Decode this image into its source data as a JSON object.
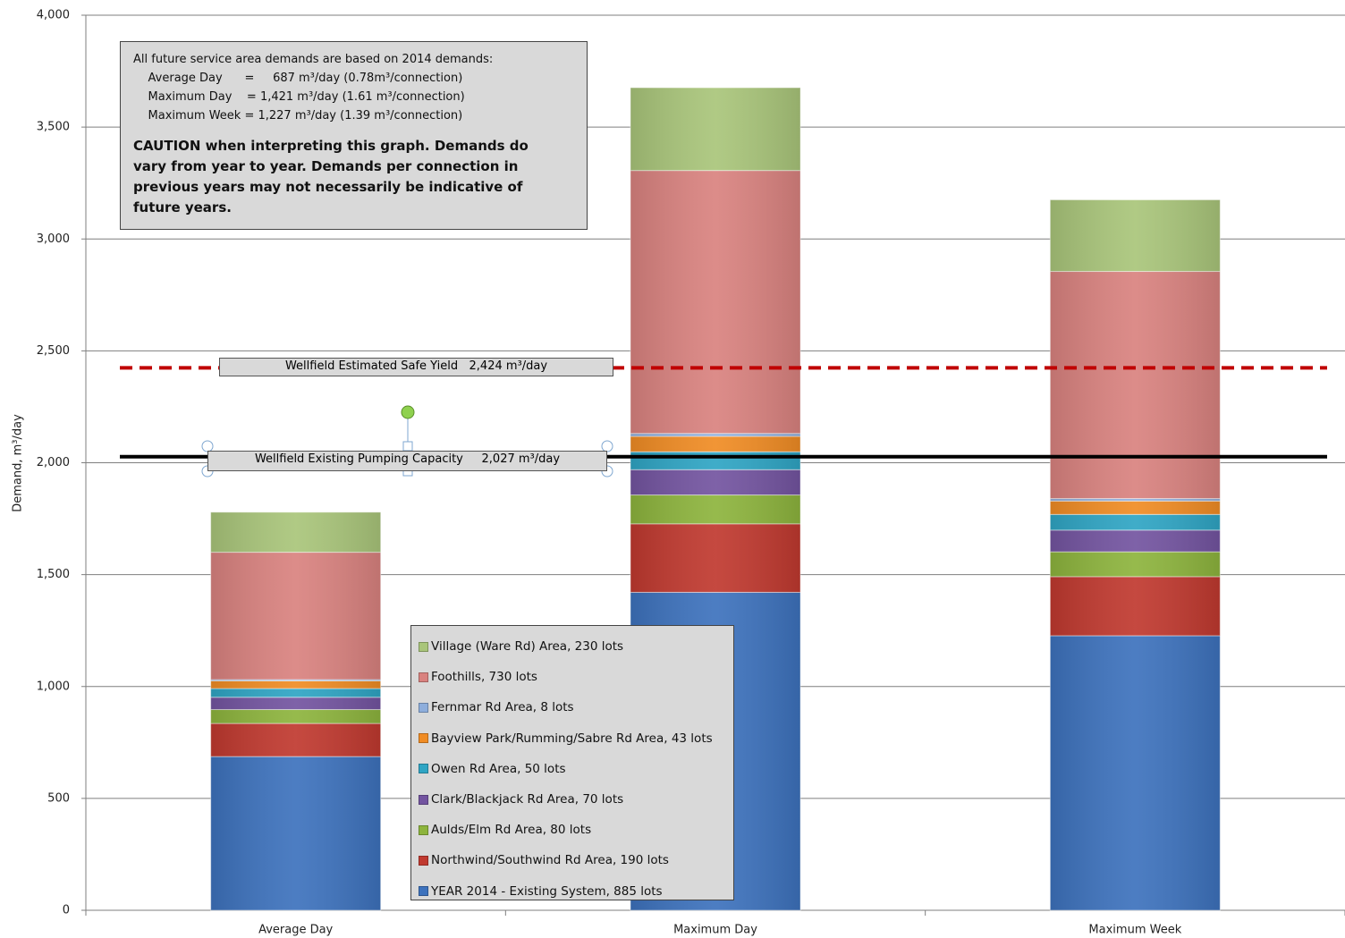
{
  "chart_data": {
    "type": "stacked_bar",
    "y_label": "Demand, m³/day",
    "categories": [
      "Average Day",
      "Maximum Day",
      "Maximum Week"
    ],
    "ylim": [
      0,
      4000
    ],
    "yticks": [
      0,
      500,
      {
        "value": 1000,
        "label": "1,000"
      },
      {
        "value": 1500,
        "label": "1,500"
      },
      {
        "value": 2000,
        "label": "2,000"
      },
      {
        "value": 2500,
        "label": "2,500"
      },
      {
        "value": 3000,
        "label": "3,000"
      },
      {
        "value": 3500,
        "label": "3,500"
      },
      {
        "value": 4000,
        "label": "4,000"
      }
    ],
    "grid": true,
    "series": [
      {
        "name": "YEAR 2014  -  Existing System, 885 lots",
        "color": "#3d72bd",
        "values": [
          687,
          1421,
          1227
        ]
      },
      {
        "name": "Northwind/Southwind Rd Area, 190 lots",
        "color": "#c0392f",
        "values": [
          148,
          306,
          264
        ]
      },
      {
        "name": "Aulds/Elm Rd Area, 80 lots",
        "color": "#8db43d",
        "values": [
          62,
          129,
          111
        ]
      },
      {
        "name": "Clark/Blackjack Rd Area, 70 lots",
        "color": "#7354a0",
        "values": [
          55,
          113,
          97
        ]
      },
      {
        "name": "Owen Rd Area, 50 lots",
        "color": "#2fa5c4",
        "values": [
          39,
          80,
          70
        ]
      },
      {
        "name": "Bayview Park/Rumming/Sabre Rd Area,  43 lots",
        "color": "#f08c24",
        "values": [
          34,
          69,
          60
        ]
      },
      {
        "name": "Fernmar Rd Area, 8 lots",
        "color": "#8eaedc",
        "values": [
          6,
          13,
          11
        ]
      },
      {
        "name": "Foothills, 730 lots",
        "color": "#d9827f",
        "values": [
          569,
          1175,
          1015
        ]
      },
      {
        "name": "Village (Ware Rd) Area, 230 lots",
        "color": "#a9c57a",
        "values": [
          179,
          370,
          320
        ]
      }
    ],
    "reference_lines": [
      {
        "label": "Wellfield Estimated Safe Yield   2,424 m³/day",
        "value": 2424,
        "color": "#c00000",
        "style": "dashed"
      },
      {
        "label": "Wellfield Existing Pumping Capacity     2,027 m³/day",
        "value": 2027,
        "color": "#000000",
        "style": "solid"
      }
    ],
    "note_lines": [
      "All future service area demands are based on 2014 demands:",
      "    Average Day      =     687 m³/day (0.78m³/connection)",
      "    Maximum Day    = 1,421 m³/day (1.61 m³/connection)",
      "    Maximum Week = 1,227 m³/day (1.39 m³/connection)"
    ],
    "caution": "CAUTION when interpreting this graph.  Demands do vary from year to year.  Demands per connection in previous years may not necessarily be indicative of future years."
  }
}
